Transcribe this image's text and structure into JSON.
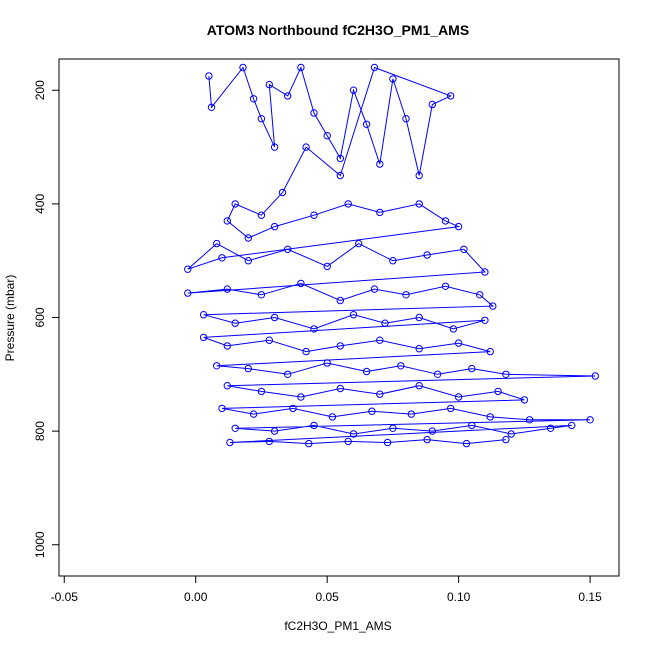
{
  "chart_data": {
    "type": "scatter",
    "title": "ATOM3 Northbound fC2H3O_PM1_AMS",
    "xlabel": "fC2H3O_PM1_AMS",
    "ylabel": "Pressure (mbar)",
    "xlim": [
      -0.052,
      0.161
    ],
    "ylim": [
      1055,
      145
    ],
    "y_reversed": true,
    "x_ticks": [
      -0.05,
      0.0,
      0.05,
      0.1,
      0.15
    ],
    "x_tick_labels": [
      "-0.05",
      "0.00",
      "0.05",
      "0.10",
      "0.15"
    ],
    "y_ticks": [
      200,
      400,
      600,
      800,
      1000
    ],
    "y_tick_labels": [
      "200",
      "400",
      "600",
      "800",
      "1000"
    ],
    "grid": false,
    "legend": "none",
    "series": [
      {
        "color": "#0000ff",
        "marker": "open-circle",
        "line": true,
        "points": [
          [
            0.005,
            175
          ],
          [
            0.006,
            230
          ],
          [
            0.018,
            160
          ],
          [
            0.022,
            215
          ],
          [
            0.025,
            250
          ],
          [
            0.03,
            300
          ],
          [
            0.028,
            190
          ],
          [
            0.035,
            210
          ],
          [
            0.04,
            160
          ],
          [
            0.045,
            240
          ],
          [
            0.05,
            280
          ],
          [
            0.055,
            320
          ],
          [
            0.06,
            200
          ],
          [
            0.065,
            260
          ],
          [
            0.07,
            330
          ],
          [
            0.075,
            180
          ],
          [
            0.08,
            250
          ],
          [
            0.085,
            350
          ],
          [
            0.09,
            225
          ],
          [
            0.097,
            210
          ],
          [
            0.068,
            160
          ],
          [
            0.055,
            350
          ],
          [
            0.042,
            300
          ],
          [
            0.033,
            380
          ],
          [
            0.025,
            420
          ],
          [
            0.015,
            400
          ],
          [
            0.012,
            430
          ],
          [
            0.02,
            460
          ],
          [
            0.03,
            440
          ],
          [
            0.045,
            420
          ],
          [
            0.058,
            400
          ],
          [
            0.07,
            415
          ],
          [
            0.085,
            400
          ],
          [
            0.095,
            430
          ],
          [
            0.1,
            440
          ],
          [
            0.01,
            495
          ],
          [
            -0.003,
            515
          ],
          [
            0.008,
            470
          ],
          [
            0.02,
            500
          ],
          [
            0.035,
            480
          ],
          [
            0.05,
            510
          ],
          [
            0.062,
            470
          ],
          [
            0.075,
            500
          ],
          [
            0.088,
            490
          ],
          [
            0.102,
            480
          ],
          [
            0.11,
            520
          ],
          [
            -0.003,
            557
          ],
          [
            0.012,
            550
          ],
          [
            0.025,
            560
          ],
          [
            0.04,
            540
          ],
          [
            0.055,
            570
          ],
          [
            0.068,
            550
          ],
          [
            0.08,
            560
          ],
          [
            0.095,
            545
          ],
          [
            0.108,
            560
          ],
          [
            0.113,
            580
          ],
          [
            0.003,
            595
          ],
          [
            0.015,
            610
          ],
          [
            0.03,
            600
          ],
          [
            0.045,
            620
          ],
          [
            0.06,
            595
          ],
          [
            0.072,
            610
          ],
          [
            0.085,
            600
          ],
          [
            0.098,
            620
          ],
          [
            0.11,
            605
          ],
          [
            0.003,
            635
          ],
          [
            0.012,
            650
          ],
          [
            0.028,
            640
          ],
          [
            0.042,
            660
          ],
          [
            0.055,
            650
          ],
          [
            0.07,
            640
          ],
          [
            0.085,
            655
          ],
          [
            0.1,
            645
          ],
          [
            0.112,
            660
          ],
          [
            0.008,
            685
          ],
          [
            0.02,
            690
          ],
          [
            0.035,
            700
          ],
          [
            0.05,
            680
          ],
          [
            0.065,
            695
          ],
          [
            0.078,
            685
          ],
          [
            0.092,
            700
          ],
          [
            0.105,
            690
          ],
          [
            0.118,
            700
          ],
          [
            0.152,
            703
          ],
          [
            0.012,
            720
          ],
          [
            0.025,
            730
          ],
          [
            0.04,
            740
          ],
          [
            0.055,
            725
          ],
          [
            0.07,
            735
          ],
          [
            0.085,
            720
          ],
          [
            0.1,
            740
          ],
          [
            0.115,
            730
          ],
          [
            0.125,
            745
          ],
          [
            0.01,
            760
          ],
          [
            0.022,
            770
          ],
          [
            0.037,
            760
          ],
          [
            0.052,
            775
          ],
          [
            0.067,
            765
          ],
          [
            0.082,
            770
          ],
          [
            0.097,
            760
          ],
          [
            0.112,
            775
          ],
          [
            0.127,
            780
          ],
          [
            0.15,
            780
          ],
          [
            0.015,
            795
          ],
          [
            0.03,
            800
          ],
          [
            0.045,
            790
          ],
          [
            0.06,
            805
          ],
          [
            0.075,
            795
          ],
          [
            0.09,
            800
          ],
          [
            0.105,
            790
          ],
          [
            0.12,
            805
          ],
          [
            0.135,
            795
          ],
          [
            0.143,
            790
          ],
          [
            0.013,
            820
          ],
          [
            0.028,
            818
          ],
          [
            0.043,
            822
          ],
          [
            0.058,
            818
          ],
          [
            0.073,
            820
          ],
          [
            0.088,
            815
          ],
          [
            0.103,
            822
          ],
          [
            0.118,
            815
          ]
        ]
      }
    ]
  }
}
